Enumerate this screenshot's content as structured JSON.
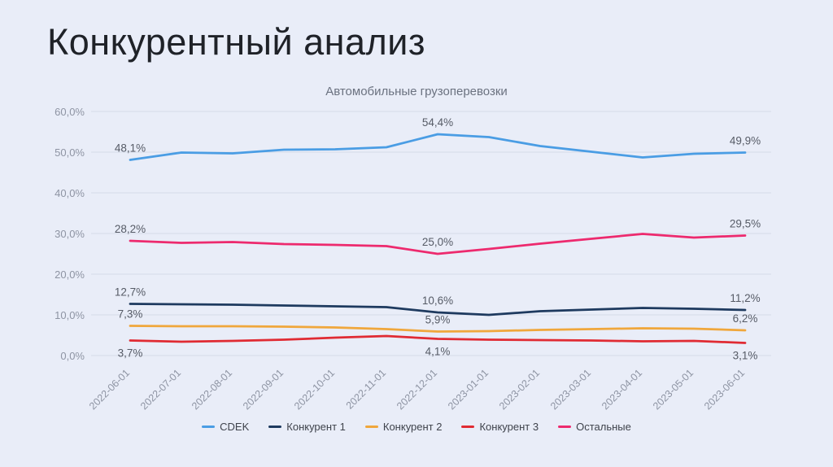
{
  "page": {
    "title": "Конкурентный анализ"
  },
  "chart_data": {
    "type": "line",
    "title": "Автомобильные грузоперевозки",
    "background_color": "#E9EDF8",
    "grid": true,
    "legend_position": "bottom",
    "ylim": [
      0,
      60
    ],
    "y_tick_labels": [
      "0,0%",
      "10,0%",
      "20,0%",
      "30,0%",
      "40,0%",
      "50,0%",
      "60,0%"
    ],
    "x_labels": [
      "2022-06-01",
      "2022-07-01",
      "2022-08-01",
      "2022-09-01",
      "2022-10-01",
      "2022-11-01",
      "2022-12-01",
      "2023-01-01",
      "2023-02-01",
      "2023-03-01",
      "2023-04-01",
      "2023-05-01",
      "2023-06-01"
    ],
    "series": [
      {
        "name": "CDEK",
        "color": "#4A9DE4",
        "values": [
          48.1,
          49.9,
          49.7,
          50.6,
          50.7,
          51.2,
          54.4,
          53.7,
          51.5,
          50.1,
          48.7,
          49.6,
          49.9
        ],
        "point_labels": [
          {
            "index": 0,
            "text": "48,1%",
            "position": "above"
          },
          {
            "index": 6,
            "text": "54,4%",
            "position": "above"
          },
          {
            "index": 12,
            "text": "49,9%",
            "position": "above"
          }
        ]
      },
      {
        "name": "Конкурент 1",
        "color": "#1E3A5F",
        "values": [
          12.7,
          12.6,
          12.5,
          12.3,
          12.1,
          11.9,
          10.6,
          10.0,
          10.9,
          11.3,
          11.7,
          11.5,
          11.2
        ],
        "point_labels": [
          {
            "index": 0,
            "text": "12,7%",
            "position": "above"
          },
          {
            "index": 6,
            "text": "10,6%",
            "position": "above"
          },
          {
            "index": 12,
            "text": "11,2%",
            "position": "above"
          }
        ]
      },
      {
        "name": "Конкурент 2",
        "color": "#F0A73C",
        "values": [
          7.3,
          7.2,
          7.2,
          7.1,
          6.9,
          6.5,
          5.9,
          6.0,
          6.3,
          6.5,
          6.7,
          6.6,
          6.2
        ],
        "point_labels": [
          {
            "index": 0,
            "text": "7,3%",
            "position": "above"
          },
          {
            "index": 6,
            "text": "5,9%",
            "position": "above"
          },
          {
            "index": 12,
            "text": "6,2%",
            "position": "above"
          }
        ]
      },
      {
        "name": "Конкурент 3",
        "color": "#E02B33",
        "values": [
          3.7,
          3.4,
          3.6,
          3.9,
          4.4,
          4.8,
          4.1,
          3.9,
          3.8,
          3.7,
          3.5,
          3.6,
          3.1
        ],
        "point_labels": [
          {
            "index": 0,
            "text": "3,7%",
            "position": "below"
          },
          {
            "index": 6,
            "text": "4,1%",
            "position": "below"
          },
          {
            "index": 12,
            "text": "3,1%",
            "position": "below"
          }
        ]
      },
      {
        "name": "Остальные",
        "color": "#ED2A6E",
        "values": [
          28.2,
          27.7,
          27.9,
          27.4,
          27.2,
          26.9,
          25.0,
          26.2,
          27.5,
          28.7,
          29.9,
          29.0,
          29.5
        ],
        "point_labels": [
          {
            "index": 0,
            "text": "28,2%",
            "position": "above"
          },
          {
            "index": 6,
            "text": "25,0%",
            "position": "above"
          },
          {
            "index": 12,
            "text": "29,5%",
            "position": "above"
          }
        ]
      }
    ]
  }
}
